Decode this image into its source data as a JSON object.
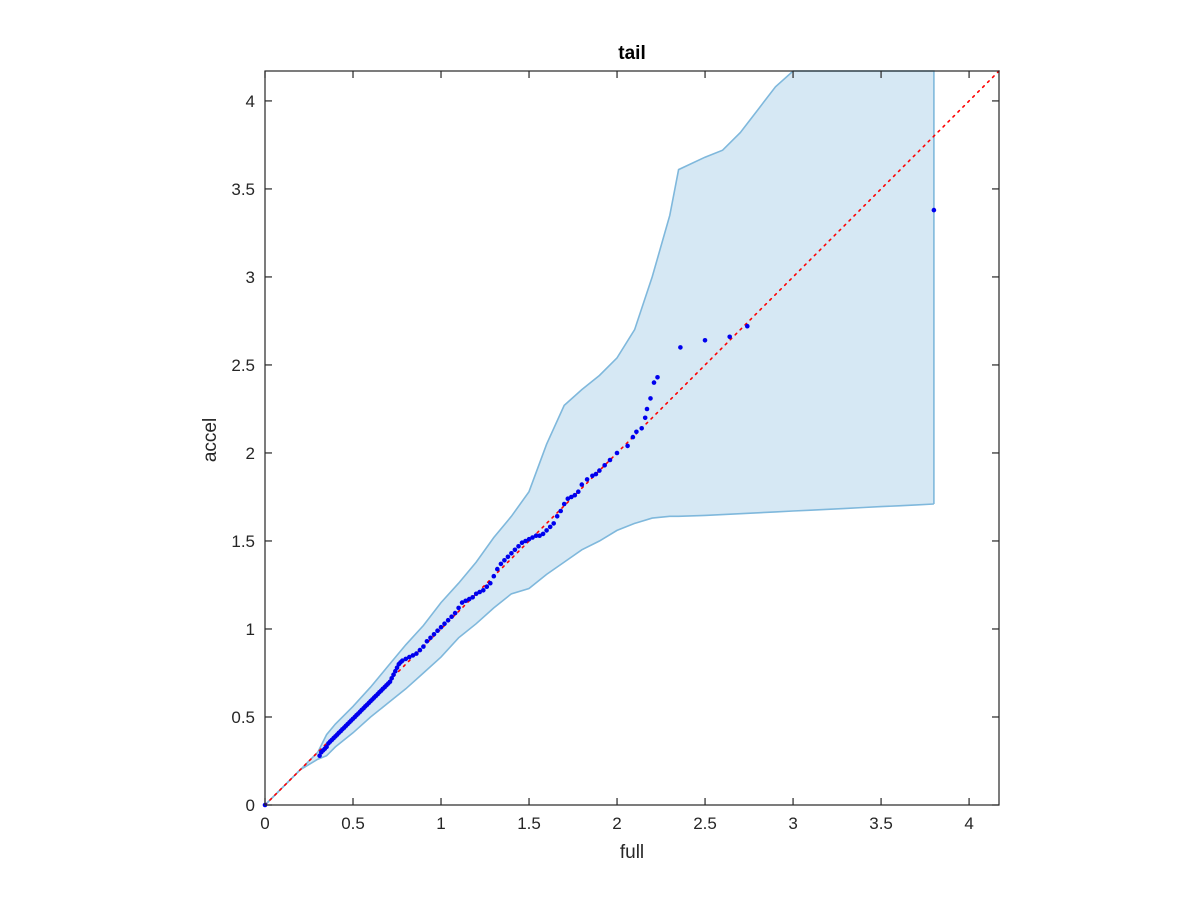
{
  "chart_data": {
    "type": "scatter",
    "title": "tail",
    "xlabel": "full",
    "ylabel": "accel",
    "xlim": [
      0,
      4.17
    ],
    "ylim": [
      0,
      4.17
    ],
    "xticks": [
      0,
      0.5,
      1,
      1.5,
      2,
      2.5,
      3,
      3.5,
      4
    ],
    "xtick_labels": [
      "0",
      "0.5",
      "1",
      "1.5",
      "2",
      "2.5",
      "3",
      "3.5",
      "4"
    ],
    "yticks": [
      0,
      0.5,
      1,
      1.5,
      2,
      2.5,
      3,
      3.5,
      4
    ],
    "ytick_labels": [
      "0",
      "0.5",
      "1",
      "1.5",
      "2",
      "2.5",
      "3",
      "3.5",
      "4"
    ],
    "grid": false,
    "colors": {
      "band_fill": "#d6e8f4",
      "band_edge": "#7fb8dc",
      "points": "#0000ee",
      "reference": "#ff0000",
      "axes": "#262626"
    },
    "reference_line": {
      "x": [
        0,
        4.17
      ],
      "y": [
        0,
        4.17
      ],
      "style": "dotted"
    },
    "band": {
      "x": [
        0,
        0.1,
        0.2,
        0.3,
        0.35,
        0.4,
        0.5,
        0.6,
        0.7,
        0.8,
        0.9,
        1.0,
        1.1,
        1.2,
        1.3,
        1.4,
        1.5,
        1.6,
        1.7,
        1.8,
        1.9,
        2.0,
        2.1,
        2.2,
        2.3,
        2.35,
        2.5,
        2.6,
        2.7,
        2.8,
        2.9,
        3.0,
        3.1,
        3.2,
        3.3,
        3.4,
        3.5,
        3.6,
        3.7,
        3.8
      ],
      "upper": [
        0,
        0.1,
        0.2,
        0.3,
        0.4,
        0.46,
        0.56,
        0.67,
        0.79,
        0.91,
        1.02,
        1.15,
        1.26,
        1.38,
        1.52,
        1.64,
        1.78,
        2.05,
        2.27,
        2.36,
        2.44,
        2.54,
        2.7,
        3.0,
        3.35,
        3.61,
        3.68,
        3.72,
        3.82,
        3.95,
        4.08,
        4.2,
        4.2,
        4.2,
        4.2,
        4.2,
        4.2,
        4.2,
        4.2,
        4.2
      ],
      "lower": [
        0,
        0.1,
        0.2,
        0.26,
        0.28,
        0.33,
        0.41,
        0.5,
        0.58,
        0.66,
        0.75,
        0.84,
        0.95,
        1.03,
        1.12,
        1.2,
        1.23,
        1.31,
        1.38,
        1.45,
        1.5,
        1.56,
        1.6,
        1.63,
        1.64,
        1.64,
        1.645,
        1.65,
        1.655,
        1.66,
        1.665,
        1.67,
        1.675,
        1.68,
        1.685,
        1.69,
        1.695,
        1.7,
        1.705,
        1.71
      ]
    },
    "points": {
      "x": [
        0,
        0.31,
        0.32,
        0.33,
        0.34,
        0.35,
        0.36,
        0.37,
        0.38,
        0.39,
        0.4,
        0.41,
        0.42,
        0.43,
        0.44,
        0.45,
        0.46,
        0.47,
        0.48,
        0.49,
        0.5,
        0.51,
        0.52,
        0.53,
        0.54,
        0.55,
        0.56,
        0.57,
        0.58,
        0.59,
        0.6,
        0.61,
        0.62,
        0.63,
        0.64,
        0.65,
        0.66,
        0.67,
        0.68,
        0.69,
        0.7,
        0.71,
        0.72,
        0.73,
        0.74,
        0.75,
        0.76,
        0.77,
        0.78,
        0.8,
        0.82,
        0.84,
        0.86,
        0.88,
        0.9,
        0.92,
        0.94,
        0.96,
        0.98,
        1.0,
        1.02,
        1.04,
        1.06,
        1.08,
        1.1,
        1.12,
        1.14,
        1.16,
        1.18,
        1.2,
        1.22,
        1.24,
        1.26,
        1.28,
        1.3,
        1.32,
        1.34,
        1.36,
        1.38,
        1.4,
        1.42,
        1.44,
        1.46,
        1.48,
        1.5,
        1.52,
        1.54,
        1.56,
        1.58,
        1.6,
        1.62,
        1.64,
        1.66,
        1.68,
        1.7,
        1.72,
        1.74,
        1.76,
        1.78,
        1.8,
        1.83,
        1.86,
        1.88,
        1.9,
        1.93,
        1.96,
        2.0,
        2.06,
        2.09,
        2.11,
        2.14,
        2.16,
        2.17,
        2.19,
        2.21,
        2.23,
        2.36,
        2.5,
        2.64,
        2.74,
        3.8
      ],
      "y": [
        0,
        0.28,
        0.3,
        0.31,
        0.32,
        0.33,
        0.35,
        0.36,
        0.37,
        0.38,
        0.39,
        0.4,
        0.41,
        0.42,
        0.43,
        0.44,
        0.45,
        0.46,
        0.47,
        0.48,
        0.49,
        0.5,
        0.51,
        0.52,
        0.53,
        0.54,
        0.55,
        0.56,
        0.57,
        0.58,
        0.59,
        0.6,
        0.61,
        0.62,
        0.63,
        0.64,
        0.65,
        0.66,
        0.67,
        0.68,
        0.69,
        0.7,
        0.72,
        0.74,
        0.76,
        0.78,
        0.8,
        0.81,
        0.82,
        0.83,
        0.84,
        0.85,
        0.86,
        0.88,
        0.9,
        0.93,
        0.95,
        0.97,
        0.99,
        1.01,
        1.03,
        1.05,
        1.07,
        1.09,
        1.12,
        1.15,
        1.16,
        1.17,
        1.18,
        1.2,
        1.21,
        1.22,
        1.24,
        1.26,
        1.3,
        1.34,
        1.37,
        1.39,
        1.41,
        1.43,
        1.45,
        1.47,
        1.49,
        1.5,
        1.51,
        1.52,
        1.53,
        1.53,
        1.54,
        1.56,
        1.58,
        1.6,
        1.64,
        1.67,
        1.71,
        1.74,
        1.75,
        1.76,
        1.78,
        1.82,
        1.85,
        1.87,
        1.88,
        1.9,
        1.93,
        1.96,
        2.0,
        2.04,
        2.09,
        2.12,
        2.14,
        2.2,
        2.25,
        2.31,
        2.4,
        2.43,
        2.6,
        2.64,
        2.66,
        2.72,
        3.38
      ]
    }
  }
}
